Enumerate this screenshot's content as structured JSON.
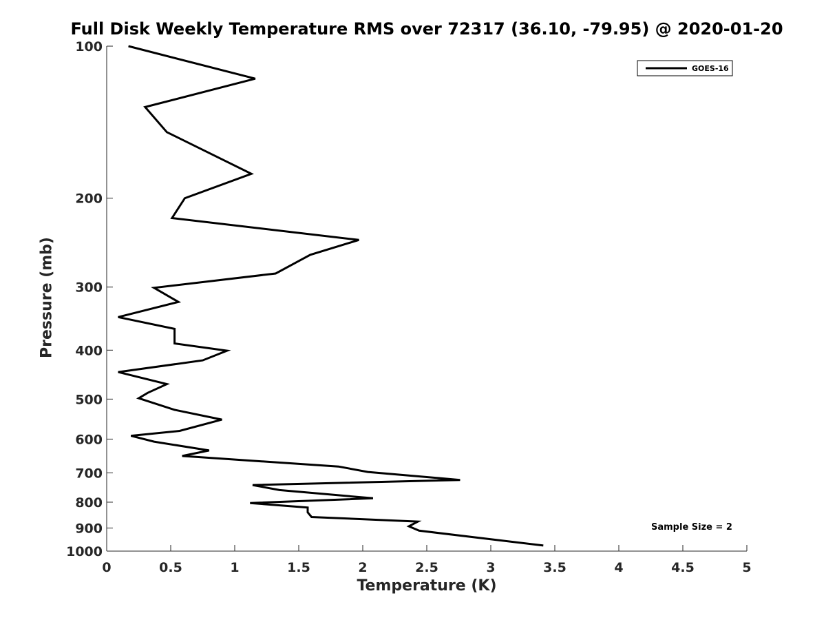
{
  "chart_data": {
    "type": "line",
    "title": "Full Disk Weekly Temperature RMS over 72317 (36.10, -79.95) @ 2020-01-20",
    "xlabel": "Temperature (K)",
    "ylabel": "Pressure (mb)",
    "xlim": [
      0,
      5
    ],
    "ylim": [
      100,
      1000
    ],
    "y_scale": "log",
    "y_reversed": true,
    "x_ticks": [
      "0",
      "0.5",
      "1",
      "1.5",
      "2",
      "2.5",
      "3",
      "3.5",
      "4",
      "4.5",
      "5"
    ],
    "y_ticks": [
      "100",
      "200",
      "300",
      "400",
      "500",
      "600",
      "700",
      "800",
      "900",
      "1000"
    ],
    "grid": false,
    "legend": {
      "position": "top-right",
      "entries": [
        "GOES-16"
      ]
    },
    "annotation": "Sample Size = 2",
    "series": [
      {
        "name": "GOES-16",
        "color": "#000000",
        "points": [
          [
            0.17,
            100
          ],
          [
            1.16,
            116
          ],
          [
            0.3,
            132
          ],
          [
            0.47,
            148
          ],
          [
            1.13,
            179
          ],
          [
            0.61,
            200
          ],
          [
            0.51,
            219
          ],
          [
            1.97,
            242
          ],
          [
            1.59,
            259
          ],
          [
            1.32,
            282
          ],
          [
            0.37,
            301
          ],
          [
            0.56,
            321
          ],
          [
            0.09,
            344
          ],
          [
            0.53,
            363
          ],
          [
            0.53,
            388
          ],
          [
            0.94,
            401
          ],
          [
            0.75,
            419
          ],
          [
            0.09,
            442
          ],
          [
            0.47,
            467
          ],
          [
            0.32,
            486
          ],
          [
            0.25,
            498
          ],
          [
            0.53,
            525
          ],
          [
            0.9,
            549
          ],
          [
            0.57,
            578
          ],
          [
            0.19,
            591
          ],
          [
            0.37,
            607
          ],
          [
            0.8,
            632
          ],
          [
            0.59,
            648
          ],
          [
            1.2,
            664
          ],
          [
            1.81,
            680
          ],
          [
            2.04,
            697
          ],
          [
            2.76,
            723
          ],
          [
            1.14,
            740
          ],
          [
            1.35,
            757
          ],
          [
            2.08,
            786
          ],
          [
            1.12,
            803
          ],
          [
            1.57,
            820
          ],
          [
            1.57,
            838
          ],
          [
            1.6,
            856
          ],
          [
            2.43,
            874
          ],
          [
            2.36,
            893
          ],
          [
            2.44,
            911
          ],
          [
            3.41,
            975
          ]
        ]
      }
    ]
  }
}
